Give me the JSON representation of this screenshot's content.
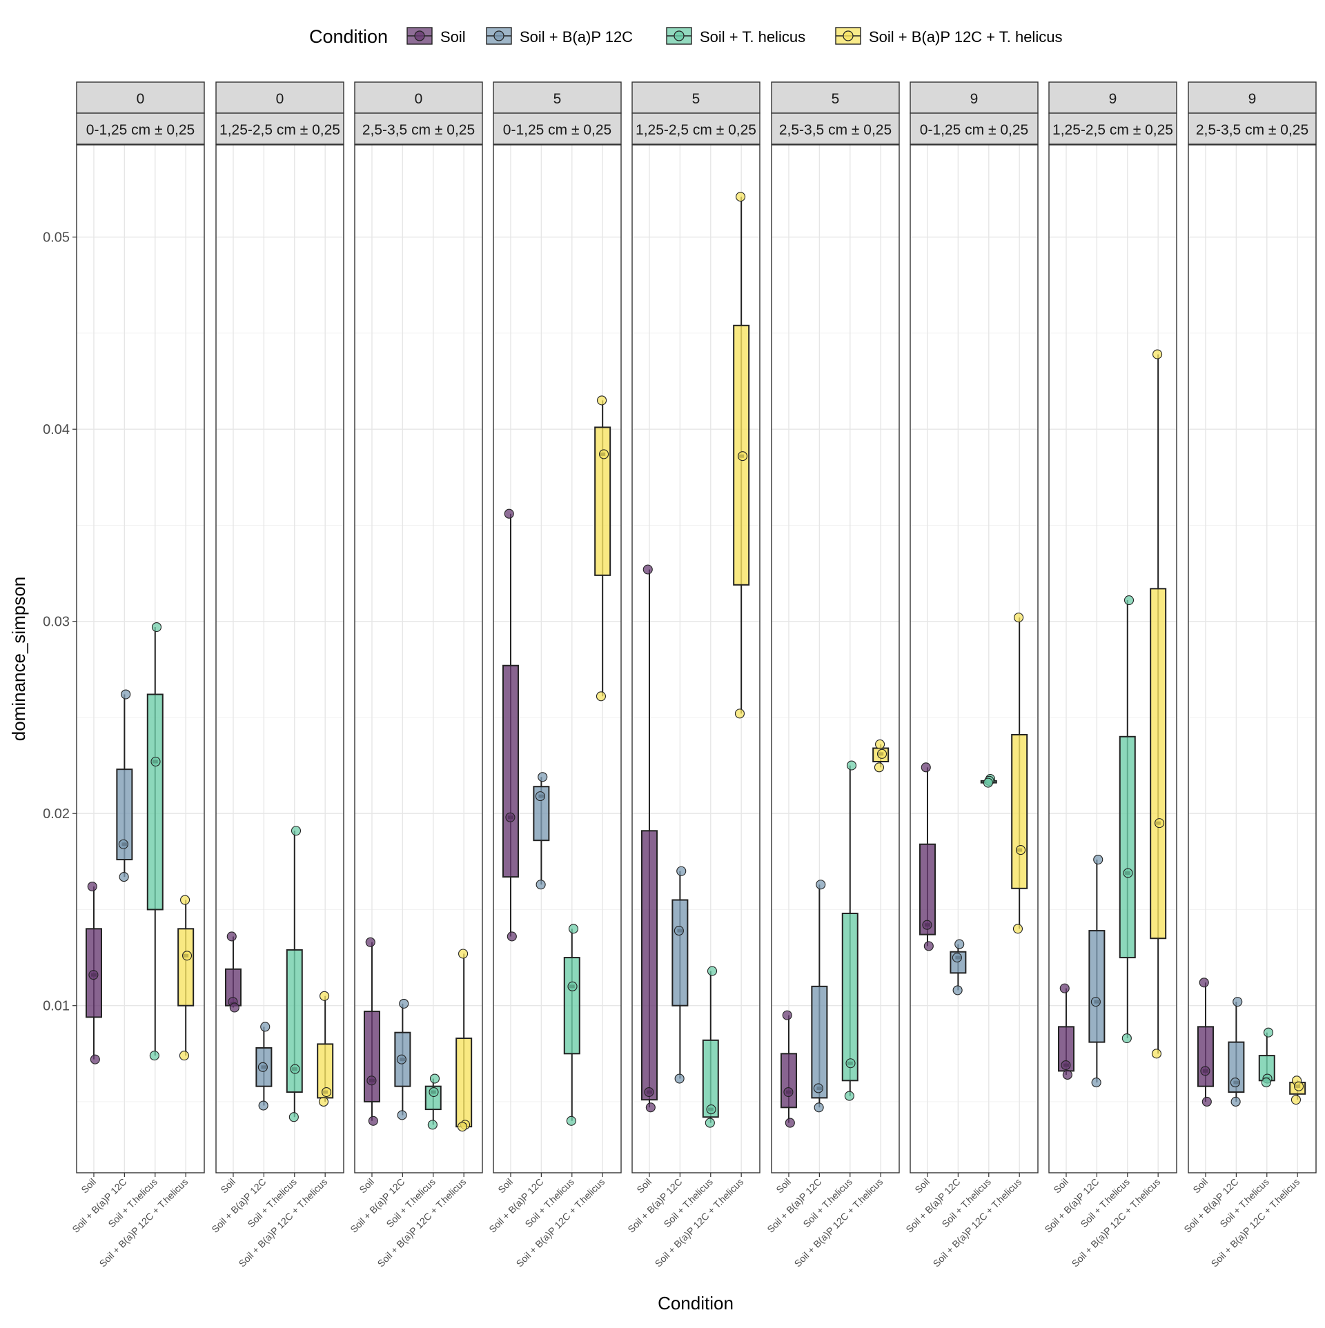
{
  "chart_data": {
    "type": "box",
    "xlabel": "Condition",
    "ylabel": "dominance_simpson",
    "ylim": [
      0.0013,
      0.0548
    ],
    "yticks": [
      0.01,
      0.02,
      0.03,
      0.04,
      0.05
    ],
    "ytick_labels": [
      "0.01",
      "0.02",
      "0.03",
      "0.04",
      "0.05"
    ],
    "grid": true,
    "legend": {
      "title": "Condition",
      "position": "top",
      "entries": [
        "Soil",
        "Soil + B(a)P 12C",
        "Soil + T. helicus",
        "Soil + B(a)P 12C + T. helicus"
      ]
    },
    "categories": [
      "Soil",
      "Soil + B(a)P 12C",
      "Soil + T.helicus",
      "Soil + B(a)P 12C + T.helicus"
    ],
    "colors": [
      "#6a3d74",
      "#7f9db5",
      "#6fceaa",
      "#f7e463"
    ],
    "panels": [
      {
        "time": "0",
        "depth": "0-1,25 cm ± 0,25",
        "groups": [
          {
            "box": [
              0.0094,
              0.0116,
              0.014
            ],
            "whisker": [
              0.0072,
              0.0162
            ],
            "points": [
              0.0162,
              0.0116,
              0.0072
            ]
          },
          {
            "box": [
              0.0176,
              0.0184,
              0.0223
            ],
            "whisker": [
              0.0167,
              0.0262
            ],
            "points": [
              0.0262,
              0.0184,
              0.0167
            ]
          },
          {
            "box": [
              0.015,
              0.0227,
              0.0262
            ],
            "whisker": [
              0.0074,
              0.0297
            ],
            "points": [
              0.0297,
              0.0227,
              0.0074
            ]
          },
          {
            "box": [
              0.01,
              0.0126,
              0.014
            ],
            "whisker": [
              0.0074,
              0.0155
            ],
            "points": [
              0.0155,
              0.0126,
              0.0074
            ]
          }
        ]
      },
      {
        "time": "0",
        "depth": "1,25-2,5 cm ± 0,25",
        "groups": [
          {
            "box": [
              0.01,
              0.0101,
              0.0119
            ],
            "whisker": [
              0.0099,
              0.0136
            ],
            "points": [
              0.0136,
              0.0102,
              0.0099
            ]
          },
          {
            "box": [
              0.0058,
              0.0068,
              0.0078
            ],
            "whisker": [
              0.0048,
              0.0089
            ],
            "points": [
              0.0089,
              0.0068,
              0.0048
            ]
          },
          {
            "box": [
              0.0055,
              0.0067,
              0.0129
            ],
            "whisker": [
              0.0042,
              0.0191
            ],
            "points": [
              0.0191,
              0.0067,
              0.0042
            ]
          },
          {
            "box": [
              0.0052,
              0.0055,
              0.008
            ],
            "whisker": [
              0.005,
              0.0105
            ],
            "points": [
              0.0105,
              0.0055,
              0.005
            ]
          }
        ]
      },
      {
        "time": "0",
        "depth": "2,5-3,5 cm ± 0,25",
        "groups": [
          {
            "box": [
              0.005,
              0.0061,
              0.0097
            ],
            "whisker": [
              0.004,
              0.0133
            ],
            "points": [
              0.0133,
              0.0061,
              0.004
            ]
          },
          {
            "box": [
              0.0058,
              0.0072,
              0.0086
            ],
            "whisker": [
              0.0043,
              0.0101
            ],
            "points": [
              0.0101,
              0.0072,
              0.0043
            ]
          },
          {
            "box": [
              0.0046,
              0.0055,
              0.0058
            ],
            "whisker": [
              0.0038,
              0.0062
            ],
            "points": [
              0.0062,
              0.0055,
              0.0038
            ]
          },
          {
            "box": [
              0.0037,
              0.0038,
              0.0083
            ],
            "whisker": [
              0.0037,
              0.0127
            ],
            "points": [
              0.0127,
              0.0038,
              0.0037
            ]
          }
        ]
      },
      {
        "time": "5",
        "depth": "0-1,25 cm ± 0,25",
        "groups": [
          {
            "box": [
              0.0167,
              0.0198,
              0.0277
            ],
            "whisker": [
              0.0136,
              0.0356
            ],
            "points": [
              0.0356,
              0.0198,
              0.0136
            ]
          },
          {
            "box": [
              0.0186,
              0.0209,
              0.0214
            ],
            "whisker": [
              0.0163,
              0.0219
            ],
            "points": [
              0.0219,
              0.0209,
              0.0163
            ]
          },
          {
            "box": [
              0.0075,
              0.011,
              0.0125
            ],
            "whisker": [
              0.004,
              0.014
            ],
            "points": [
              0.014,
              0.011,
              0.004
            ]
          },
          {
            "box": [
              0.0324,
              0.0387,
              0.0401
            ],
            "whisker": [
              0.0261,
              0.0415
            ],
            "points": [
              0.0415,
              0.0387,
              0.0261
            ]
          }
        ]
      },
      {
        "time": "5",
        "depth": "1,25-2,5 cm ± 0,25",
        "groups": [
          {
            "box": [
              0.0051,
              0.0055,
              0.0191
            ],
            "whisker": [
              0.0047,
              0.0327
            ],
            "points": [
              0.0327,
              0.0055,
              0.0047
            ]
          },
          {
            "box": [
              0.01,
              0.0139,
              0.0155
            ],
            "whisker": [
              0.0062,
              0.017
            ],
            "points": [
              0.017,
              0.0139,
              0.0062
            ]
          },
          {
            "box": [
              0.0042,
              0.0046,
              0.0082
            ],
            "whisker": [
              0.0039,
              0.0118
            ],
            "points": [
              0.0118,
              0.0046,
              0.0039
            ]
          },
          {
            "box": [
              0.0319,
              0.0386,
              0.0454
            ],
            "whisker": [
              0.0252,
              0.0521
            ],
            "points": [
              0.0521,
              0.0386,
              0.0252
            ]
          }
        ]
      },
      {
        "time": "5",
        "depth": "2,5-3,5 cm ± 0,25",
        "groups": [
          {
            "box": [
              0.0047,
              0.0055,
              0.0075
            ],
            "whisker": [
              0.0039,
              0.0095
            ],
            "points": [
              0.0095,
              0.0055,
              0.0039
            ]
          },
          {
            "box": [
              0.0052,
              0.0057,
              0.011
            ],
            "whisker": [
              0.0047,
              0.0163
            ],
            "points": [
              0.0163,
              0.0057,
              0.0047
            ]
          },
          {
            "box": [
              0.0061,
              0.007,
              0.0148
            ],
            "whisker": [
              0.0053,
              0.0225
            ],
            "points": [
              0.0225,
              0.007,
              0.0053
            ]
          },
          {
            "box": [
              0.0227,
              0.0231,
              0.0234
            ],
            "whisker": [
              0.0224,
              0.0236
            ],
            "points": [
              0.0236,
              0.0231,
              0.0224
            ]
          }
        ]
      },
      {
        "time": "9",
        "depth": "0-1,25 cm ± 0,25",
        "groups": [
          {
            "box": [
              0.0137,
              0.0142,
              0.0184
            ],
            "whisker": [
              0.0131,
              0.0224
            ],
            "points": [
              0.0224,
              0.0142,
              0.0131
            ]
          },
          {
            "box": [
              0.0117,
              0.0125,
              0.0128
            ],
            "whisker": [
              0.0108,
              0.0132
            ],
            "points": [
              0.0132,
              0.0125,
              0.0108
            ]
          },
          {
            "box": [
              0.0216,
              0.0217,
              0.0217
            ],
            "whisker": [
              0.0216,
              0.0218
            ],
            "points": [
              0.0218,
              0.0217,
              0.0216
            ]
          },
          {
            "box": [
              0.0161,
              0.0181,
              0.0241
            ],
            "whisker": [
              0.014,
              0.0302
            ],
            "points": [
              0.0302,
              0.0181,
              0.014
            ]
          }
        ]
      },
      {
        "time": "9",
        "depth": "1,25-2,5 cm ± 0,25",
        "groups": [
          {
            "box": [
              0.0066,
              0.0069,
              0.0089
            ],
            "whisker": [
              0.0064,
              0.0109
            ],
            "points": [
              0.0109,
              0.0069,
              0.0064
            ]
          },
          {
            "box": [
              0.0081,
              0.0102,
              0.0139
            ],
            "whisker": [
              0.006,
              0.0176
            ],
            "points": [
              0.0176,
              0.0102,
              0.006
            ]
          },
          {
            "box": [
              0.0125,
              0.0169,
              0.024
            ],
            "whisker": [
              0.0083,
              0.0311
            ],
            "points": [
              0.0311,
              0.0169,
              0.0083
            ]
          },
          {
            "box": [
              0.0135,
              0.0195,
              0.0317
            ],
            "whisker": [
              0.0075,
              0.0439
            ],
            "points": [
              0.0439,
              0.0195,
              0.0075
            ]
          }
        ]
      },
      {
        "time": "9",
        "depth": "2,5-3,5 cm ± 0,25",
        "groups": [
          {
            "box": [
              0.0058,
              0.0066,
              0.0089
            ],
            "whisker": [
              0.005,
              0.0112
            ],
            "points": [
              0.0112,
              0.0066,
              0.005
            ]
          },
          {
            "box": [
              0.0055,
              0.006,
              0.0081
            ],
            "whisker": [
              0.005,
              0.0102
            ],
            "points": [
              0.0102,
              0.006,
              0.005
            ]
          },
          {
            "box": [
              0.0061,
              0.0062,
              0.0074
            ],
            "whisker": [
              0.006,
              0.0086
            ],
            "points": [
              0.0086,
              0.0062,
              0.006
            ]
          },
          {
            "box": [
              0.0054,
              0.0058,
              0.006
            ],
            "whisker": [
              0.0051,
              0.0061
            ],
            "points": [
              0.0061,
              0.0058,
              0.0051
            ]
          }
        ]
      }
    ]
  }
}
